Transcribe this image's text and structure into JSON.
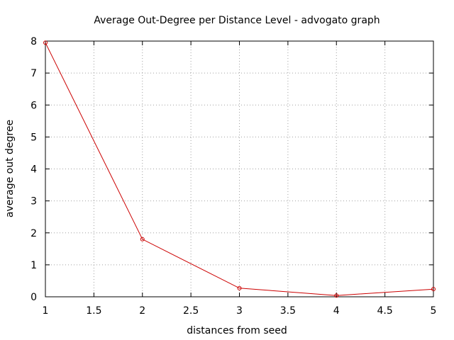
{
  "chart_data": {
    "type": "line",
    "title": "Average Out-Degree per Distance Level - advogato graph",
    "xlabel": "distances from seed",
    "ylabel": "average out degree",
    "xlim": [
      1,
      5
    ],
    "ylim": [
      0,
      8
    ],
    "xticks": [
      "1",
      "1.5",
      "2",
      "2.5",
      "3",
      "3.5",
      "4",
      "4.5",
      "5"
    ],
    "yticks": [
      "0",
      "1",
      "2",
      "3",
      "4",
      "5",
      "6",
      "7",
      "8"
    ],
    "grid": true,
    "series": [
      {
        "x": [
          1,
          2,
          3,
          4,
          5
        ],
        "values": [
          7.95,
          1.8,
          0.27,
          0.04,
          0.24
        ]
      }
    ],
    "colors": {
      "series": "#cc0000",
      "grid": "#a0a0a0"
    }
  }
}
